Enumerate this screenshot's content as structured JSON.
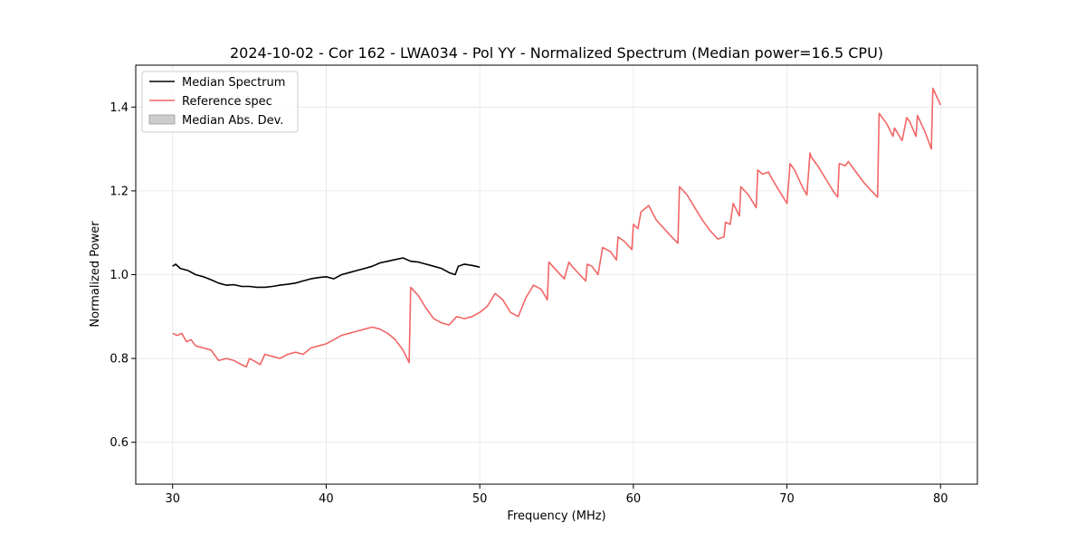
{
  "chart_data": {
    "type": "line",
    "title": "2024-10-02 - Cor 162 - LWA034 - Pol YY - Normalized Spectrum (Median power=16.5 CPU)",
    "xlabel": "Frequency (MHz)",
    "ylabel": "Normalized Power",
    "xlim": [
      27.6,
      82.4
    ],
    "ylim": [
      0.5,
      1.5
    ],
    "x_ticks": [
      30,
      40,
      50,
      60,
      70,
      80
    ],
    "y_ticks": [
      0.6,
      0.8,
      1.0,
      1.2,
      1.4
    ],
    "x_tick_labels": [
      "30",
      "40",
      "50",
      "60",
      "70",
      "80"
    ],
    "y_tick_labels": [
      "0.6",
      "0.8",
      "1.0",
      "1.2",
      "1.4"
    ],
    "grid": true,
    "legend_position": "top-left",
    "legend": [
      "Median Spectrum",
      "Reference spec",
      "Median Abs. Dev."
    ],
    "series": [
      {
        "name": "Median Spectrum",
        "color": "#000000",
        "x": [
          30.0,
          30.2,
          30.5,
          31.0,
          31.5,
          32.0,
          32.5,
          33.0,
          33.5,
          34.0,
          34.5,
          35.0,
          35.5,
          36.0,
          36.5,
          37.0,
          37.5,
          38.0,
          38.5,
          39.0,
          39.5,
          40.0,
          40.5,
          41.0,
          41.5,
          42.0,
          42.5,
          43.0,
          43.5,
          44.0,
          44.5,
          45.0,
          45.5,
          46.0,
          46.5,
          47.0,
          47.5,
          48.0,
          48.4,
          48.6,
          49.0,
          49.5,
          50.0
        ],
        "y": [
          1.02,
          1.025,
          1.015,
          1.01,
          1.0,
          0.995,
          0.988,
          0.98,
          0.975,
          0.976,
          0.972,
          0.972,
          0.97,
          0.97,
          0.972,
          0.975,
          0.977,
          0.98,
          0.985,
          0.99,
          0.993,
          0.995,
          0.99,
          1.0,
          1.005,
          1.01,
          1.015,
          1.02,
          1.028,
          1.032,
          1.036,
          1.04,
          1.032,
          1.03,
          1.025,
          1.02,
          1.015,
          1.005,
          1.0,
          1.02,
          1.025,
          1.022,
          1.018
        ]
      },
      {
        "name": "Reference spec",
        "color": "#f26666",
        "x": [
          30.0,
          30.3,
          30.6,
          30.9,
          31.2,
          31.5,
          32.0,
          32.5,
          33.0,
          33.5,
          34.0,
          34.5,
          34.8,
          35.0,
          35.5,
          35.7,
          36.0,
          36.5,
          37.0,
          37.5,
          38.0,
          38.5,
          39.0,
          39.5,
          40.0,
          40.5,
          41.0,
          41.5,
          42.0,
          42.5,
          43.0,
          43.5,
          44.0,
          44.5,
          45.0,
          45.4,
          45.5,
          46.0,
          46.5,
          47.0,
          47.5,
          48.0,
          48.5,
          49.0,
          49.5,
          50.0,
          50.5,
          51.0,
          51.5,
          52.0,
          52.5,
          53.0,
          53.5,
          54.0,
          54.4,
          54.5,
          55.0,
          55.5,
          55.8,
          56.0,
          56.5,
          56.9,
          57.0,
          57.3,
          57.7,
          58.0,
          58.5,
          58.9,
          59.0,
          59.4,
          59.9,
          60.0,
          60.3,
          60.5,
          61.0,
          61.5,
          62.0,
          62.5,
          62.9,
          63.0,
          63.5,
          64.0,
          64.5,
          65.0,
          65.5,
          65.9,
          66.0,
          66.3,
          66.5,
          66.9,
          67.0,
          67.5,
          68.0,
          68.1,
          68.4,
          68.8,
          69.0,
          69.5,
          70.0,
          70.2,
          70.5,
          71.0,
          71.3,
          71.5,
          71.6,
          72.0,
          72.5,
          73.0,
          73.3,
          73.4,
          73.8,
          74.0,
          74.5,
          75.0,
          75.5,
          75.9,
          76.0,
          76.5,
          76.9,
          77.0,
          77.5,
          77.8,
          78.0,
          78.4,
          78.5,
          79.0,
          79.4,
          79.5,
          80.0
        ],
        "y": [
          0.86,
          0.855,
          0.86,
          0.84,
          0.845,
          0.83,
          0.825,
          0.82,
          0.795,
          0.8,
          0.795,
          0.785,
          0.78,
          0.8,
          0.79,
          0.785,
          0.81,
          0.805,
          0.8,
          0.81,
          0.815,
          0.81,
          0.825,
          0.83,
          0.835,
          0.845,
          0.855,
          0.86,
          0.865,
          0.87,
          0.875,
          0.87,
          0.86,
          0.845,
          0.82,
          0.79,
          0.97,
          0.95,
          0.92,
          0.895,
          0.885,
          0.88,
          0.9,
          0.895,
          0.9,
          0.91,
          0.925,
          0.955,
          0.94,
          0.91,
          0.9,
          0.945,
          0.975,
          0.965,
          0.94,
          1.03,
          1.01,
          0.99,
          1.03,
          1.02,
          1.0,
          0.985,
          1.025,
          1.02,
          1.0,
          1.065,
          1.055,
          1.035,
          1.09,
          1.08,
          1.06,
          1.12,
          1.11,
          1.15,
          1.165,
          1.13,
          1.11,
          1.09,
          1.075,
          1.21,
          1.19,
          1.16,
          1.13,
          1.105,
          1.085,
          1.09,
          1.125,
          1.12,
          1.17,
          1.14,
          1.21,
          1.19,
          1.16,
          1.25,
          1.24,
          1.245,
          1.23,
          1.2,
          1.17,
          1.265,
          1.25,
          1.21,
          1.19,
          1.29,
          1.28,
          1.26,
          1.23,
          1.2,
          1.185,
          1.265,
          1.26,
          1.27,
          1.245,
          1.22,
          1.2,
          1.185,
          1.385,
          1.36,
          1.33,
          1.35,
          1.32,
          1.375,
          1.365,
          1.33,
          1.38,
          1.34,
          1.3,
          1.445,
          1.405
        ]
      },
      {
        "name": "Median Abs. Dev.",
        "color": "#cccccc",
        "x": [],
        "y": []
      }
    ]
  }
}
